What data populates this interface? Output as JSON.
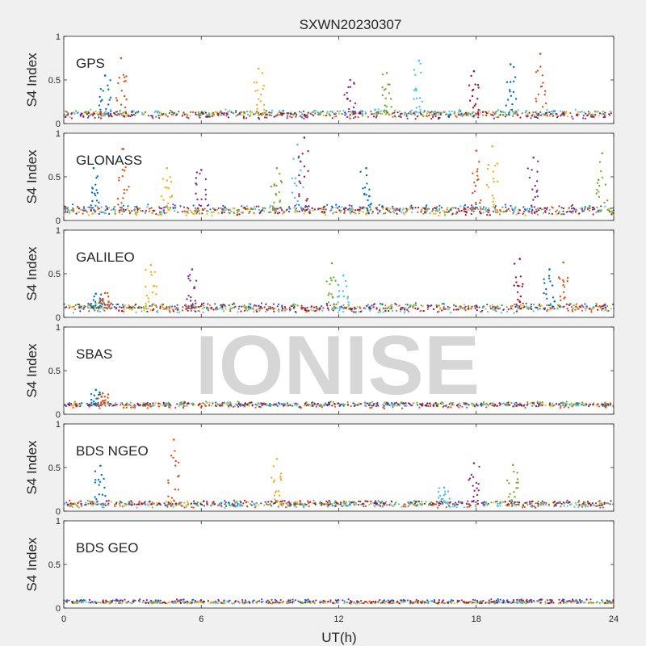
{
  "chart_data": {
    "type": "scatter",
    "title": "SXWN20230307",
    "xlabel": "UT(h)",
    "ylabel": "S4 Index",
    "xlim": [
      0,
      24
    ],
    "xticks": [
      "0",
      "6",
      "12",
      "18",
      "24"
    ],
    "ylim": [
      0,
      1
    ],
    "yticks": [
      "0",
      "0.5",
      "1"
    ],
    "watermark": "IONISE",
    "colors": [
      "#0072BD",
      "#D95319",
      "#EDB120",
      "#7E2F8E",
      "#77AC30",
      "#4DBEEE",
      "#A2142F"
    ],
    "panels": [
      {
        "name": "GPS",
        "baseline": 0.1,
        "noise": 0.03,
        "spikes": [
          [
            1.8,
            0.55
          ],
          [
            2.5,
            0.75
          ],
          [
            8.5,
            0.63
          ],
          [
            12.5,
            0.5
          ],
          [
            14.1,
            0.58
          ],
          [
            15.5,
            0.72
          ],
          [
            17.9,
            0.6
          ],
          [
            19.5,
            0.68
          ],
          [
            20.8,
            0.8
          ]
        ]
      },
      {
        "name": "GLONASS",
        "baseline": 0.12,
        "noise": 0.04,
        "spikes": [
          [
            1.3,
            0.6
          ],
          [
            2.6,
            0.82
          ],
          [
            4.5,
            0.6
          ],
          [
            6.0,
            0.58
          ],
          [
            9.3,
            0.6
          ],
          [
            10.2,
            0.87
          ],
          [
            10.5,
            0.95
          ],
          [
            13.2,
            0.6
          ],
          [
            18.0,
            0.8
          ],
          [
            18.7,
            0.85
          ],
          [
            20.5,
            0.72
          ],
          [
            23.5,
            0.77
          ]
        ]
      },
      {
        "name": "GALILEO",
        "baseline": 0.1,
        "noise": 0.03,
        "spikes": [
          [
            1.4,
            0.27
          ],
          [
            1.8,
            0.28
          ],
          [
            3.8,
            0.6
          ],
          [
            5.6,
            0.55
          ],
          [
            11.7,
            0.62
          ],
          [
            12.2,
            0.48
          ],
          [
            19.9,
            0.67
          ],
          [
            21.2,
            0.55
          ],
          [
            21.8,
            0.63
          ]
        ]
      },
      {
        "name": "SBAS",
        "baseline": 0.1,
        "noise": 0.02,
        "spikes": [
          [
            1.4,
            0.28
          ],
          [
            1.7,
            0.24
          ]
        ]
      },
      {
        "name": "BDS NGEO",
        "baseline": 0.08,
        "noise": 0.025,
        "spikes": [
          [
            1.6,
            0.52
          ],
          [
            4.8,
            0.82
          ],
          [
            9.3,
            0.6
          ],
          [
            17.9,
            0.55
          ],
          [
            19.6,
            0.53
          ],
          [
            16.6,
            0.27
          ]
        ]
      },
      {
        "name": "BDS GEO",
        "baseline": 0.07,
        "noise": 0.01,
        "spikes": []
      }
    ]
  }
}
